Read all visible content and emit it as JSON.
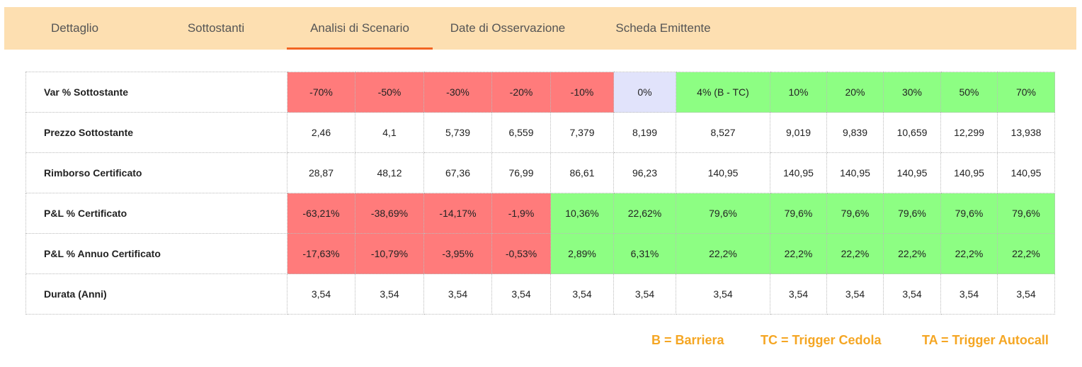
{
  "tabs": [
    {
      "label": "Dettaglio"
    },
    {
      "label": "Sottostanti"
    },
    {
      "label": "Analisi di Scenario"
    },
    {
      "label": "Date di Osservazione"
    },
    {
      "label": "Scheda Emittente"
    }
  ],
  "active_tab": "Analisi di Scenario",
  "colors": {
    "tab_bar": "#fddfb1",
    "active_tab_underline": "#f26522",
    "negative_cell": "#ff7b7b",
    "zero_cell": "#e1e3fb",
    "positive_cell": "#8dfe83",
    "legend_text": "#f5a623"
  },
  "table": {
    "rows": [
      {
        "label": "Var % Sottostante",
        "cells": [
          "-70%",
          "-50%",
          "-30%",
          "-20%",
          "-10%",
          "0%",
          "4% (B - TC)",
          "10%",
          "20%",
          "30%",
          "50%",
          "70%"
        ],
        "states": [
          "neg",
          "neg",
          "neg",
          "neg",
          "neg",
          "zero",
          "pos",
          "pos",
          "pos",
          "pos",
          "pos",
          "pos"
        ]
      },
      {
        "label": "Prezzo Sottostante",
        "cells": [
          "2,46",
          "4,1",
          "5,739",
          "6,559",
          "7,379",
          "8,199",
          "8,527",
          "9,019",
          "9,839",
          "10,659",
          "12,299",
          "13,938"
        ],
        "states": [
          "",
          "",
          "",
          "",
          "",
          "",
          "",
          "",
          "",
          "",
          "",
          ""
        ]
      },
      {
        "label": "Rimborso Certificato",
        "cells": [
          "28,87",
          "48,12",
          "67,36",
          "76,99",
          "86,61",
          "96,23",
          "140,95",
          "140,95",
          "140,95",
          "140,95",
          "140,95",
          "140,95"
        ],
        "states": [
          "",
          "",
          "",
          "",
          "",
          "",
          "",
          "",
          "",
          "",
          "",
          ""
        ]
      },
      {
        "label": "P&L % Certificato",
        "cells": [
          "-63,21%",
          "-38,69%",
          "-14,17%",
          "-1,9%",
          "10,36%",
          "22,62%",
          "79,6%",
          "79,6%",
          "79,6%",
          "79,6%",
          "79,6%",
          "79,6%"
        ],
        "states": [
          "neg",
          "neg",
          "neg",
          "neg",
          "pos",
          "pos",
          "pos",
          "pos",
          "pos",
          "pos",
          "pos",
          "pos"
        ]
      },
      {
        "label": "P&L % Annuo Certificato",
        "cells": [
          "-17,63%",
          "-10,79%",
          "-3,95%",
          "-0,53%",
          "2,89%",
          "6,31%",
          "22,2%",
          "22,2%",
          "22,2%",
          "22,2%",
          "22,2%",
          "22,2%"
        ],
        "states": [
          "neg",
          "neg",
          "neg",
          "neg",
          "pos",
          "pos",
          "pos",
          "pos",
          "pos",
          "pos",
          "pos",
          "pos"
        ]
      },
      {
        "label": "Durata (Anni)",
        "cells": [
          "3,54",
          "3,54",
          "3,54",
          "3,54",
          "3,54",
          "3,54",
          "3,54",
          "3,54",
          "3,54",
          "3,54",
          "3,54",
          "3,54"
        ],
        "states": [
          "",
          "",
          "",
          "",
          "",
          "",
          "",
          "",
          "",
          "",
          "",
          ""
        ]
      }
    ]
  },
  "legend": {
    "barriera": "B = Barriera",
    "trigger_cedola": "TC = Trigger Cedola",
    "trigger_autocall": "TA = Trigger Autocall"
  }
}
